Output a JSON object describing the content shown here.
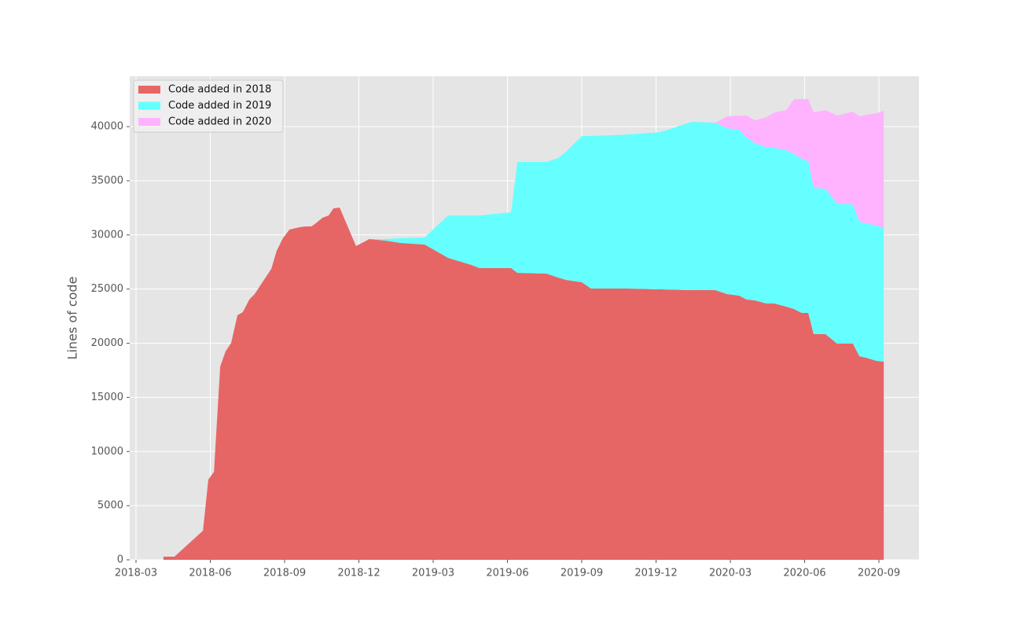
{
  "chart_data": {
    "type": "stacked_area",
    "ylabel": "Lines of code",
    "x": [
      2018.259,
      2018.296,
      2018.392,
      2018.41,
      2018.429,
      2018.45,
      2018.468,
      2018.487,
      2018.508,
      2018.526,
      2018.548,
      2018.566,
      2018.585,
      2018.622,
      2018.64,
      2018.661,
      2018.683,
      2018.717,
      2018.738,
      2018.757,
      2018.775,
      2018.794,
      2018.815,
      2018.831,
      2018.852,
      2018.907,
      2018.952,
      2019.005,
      2019.058,
      2019.138,
      2019.217,
      2019.296,
      2019.323,
      2019.429,
      2019.45,
      2019.548,
      2019.587,
      2019.614,
      2019.667,
      2019.698,
      2019.825,
      2019.931,
      2020.037,
      2020.116,
      2020.156,
      2020.196,
      2020.222,
      2020.249,
      2020.288,
      2020.315,
      2020.355,
      2020.381,
      2020.407,
      2020.429,
      2020.447,
      2020.487,
      2020.526,
      2020.579,
      2020.601,
      2020.624,
      2020.659,
      2020.683
    ],
    "series": [
      {
        "name": "Code added in 2018",
        "color": "#e66665",
        "values": [
          290,
          290,
          2686,
          7405,
          8131,
          17860,
          19239,
          20038,
          22579,
          22869,
          24031,
          24539,
          25338,
          26862,
          28532,
          29693,
          30492,
          30710,
          30782,
          30782,
          31145,
          31580,
          31798,
          32452,
          32525,
          28967,
          29621,
          29476,
          29258,
          29113,
          27879,
          27225,
          26935,
          26935,
          26500,
          26426,
          26064,
          25846,
          25628,
          25047,
          25047,
          24974,
          24902,
          24902,
          24539,
          24394,
          24031,
          23958,
          23668,
          23668,
          23377,
          23159,
          22796,
          22796,
          20836,
          20836,
          19965,
          19965,
          18803,
          18658,
          18368,
          18295
        ]
      },
      {
        "name": "Code added in 2019",
        "color": "#66ffff",
        "values": [
          0,
          0,
          0,
          0,
          0,
          0,
          0,
          0,
          0,
          0,
          0,
          0,
          0,
          0,
          0,
          0,
          0,
          0,
          0,
          0,
          0,
          0,
          0,
          0,
          0,
          0,
          0,
          150,
          440,
          650,
          3919,
          4573,
          4863,
          5154,
          10236,
          10310,
          11035,
          11833,
          13503,
          14084,
          14229,
          14520,
          15536,
          15464,
          15318,
          15318,
          14955,
          14520,
          14447,
          14374,
          14447,
          14303,
          14230,
          14012,
          13504,
          13431,
          12923,
          12850,
          12415,
          12414,
          12487,
          12342
        ]
      },
      {
        "name": "Code added in 2020",
        "color": "#ffb3ff",
        "values": [
          0,
          0,
          0,
          0,
          0,
          0,
          0,
          0,
          0,
          0,
          0,
          0,
          0,
          0,
          0,
          0,
          0,
          0,
          0,
          0,
          0,
          0,
          0,
          0,
          0,
          0,
          0,
          0,
          0,
          0,
          0,
          0,
          0,
          0,
          0,
          0,
          0,
          0,
          0,
          0,
          0,
          0,
          0,
          0,
          1089,
          1307,
          2033,
          2106,
          2759,
          3267,
          3703,
          5081,
          5517,
          5735,
          6969,
          7260,
          8131,
          8567,
          9728,
          10019,
          10381,
          10818
        ]
      }
    ],
    "xlim": [
      2018.1455,
      2020.8016
    ],
    "xticks": [
      {
        "value": 2018.1667,
        "label": "2018-03"
      },
      {
        "value": 2018.4167,
        "label": "2018-06"
      },
      {
        "value": 2018.6667,
        "label": "2018-09"
      },
      {
        "value": 2018.9167,
        "label": "2018-12"
      },
      {
        "value": 2019.1667,
        "label": "2019-03"
      },
      {
        "value": 2019.4167,
        "label": "2019-06"
      },
      {
        "value": 2019.6667,
        "label": "2019-09"
      },
      {
        "value": 2019.9167,
        "label": "2019-12"
      },
      {
        "value": 2020.1667,
        "label": "2020-03"
      },
      {
        "value": 2020.4167,
        "label": "2020-06"
      },
      {
        "value": 2020.6667,
        "label": "2020-09"
      }
    ],
    "ylim": [
      0,
      44650
    ],
    "yticks": [
      0,
      5000,
      10000,
      15000,
      20000,
      25000,
      30000,
      35000,
      40000
    ],
    "grid": true,
    "legend": "upper left"
  }
}
